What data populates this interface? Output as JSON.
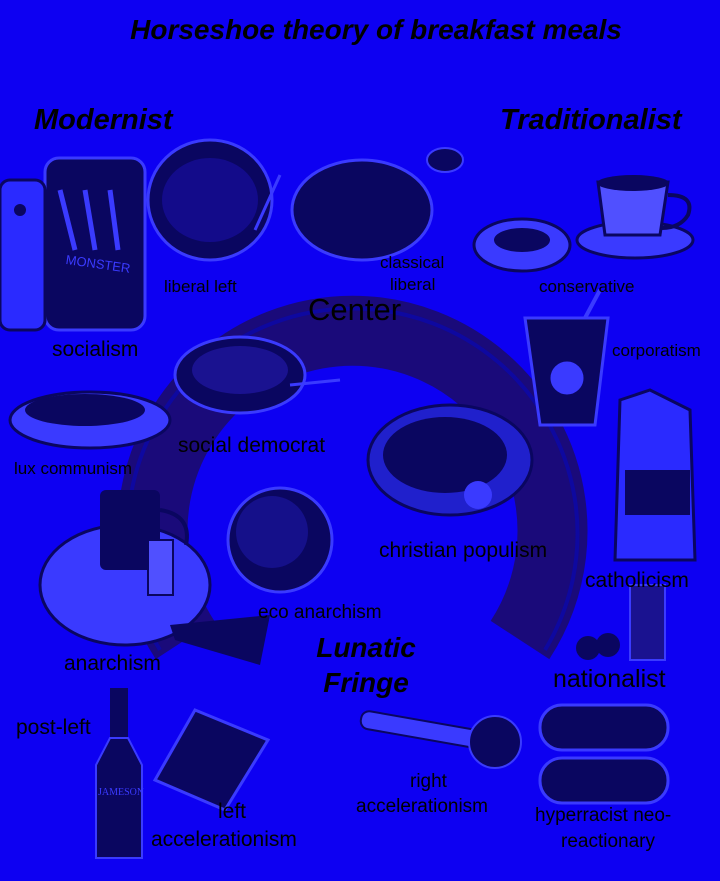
{
  "title": "Horseshoe theory of breakfast meals",
  "axes": {
    "modernist": "Modernist",
    "traditionalist": "Traditionalist",
    "center": "Center",
    "lunatic_fringe_line1": "Lunatic",
    "lunatic_fringe_line2": "Fringe"
  },
  "labels": {
    "liberal_left": "liberal left",
    "classical_liberal_1": "classical",
    "classical_liberal_2": "liberal",
    "conservative": "conservative",
    "socialism": "socialism",
    "corporatism": "corporatism",
    "social_democrat": "social democrat",
    "lux_communism": "lux communism",
    "christian_populism": "christian populism",
    "catholicism": "catholicism",
    "eco_anarchism": "eco anarchism",
    "anarchism": "anarchism",
    "nationalist": "nationalist",
    "post_left": "post-left",
    "left_accelerationism_1": "left",
    "left_accelerationism_2": "accelerationism",
    "right_accelerationism_1": "right",
    "right_accelerationism_2": "accelerationism",
    "hyperracist_1": "hyperracist neo-",
    "hyperracist_2": "reactionary"
  },
  "product_text": {
    "can_brand": "MONSTER",
    "bottle_brand": "JAMESON"
  },
  "colors": {
    "background": "#0d00f2",
    "horseshoe": "#1a0a7a",
    "text": "#000000",
    "item_dark": "#0a0660",
    "item_light": "#3a3aff"
  }
}
